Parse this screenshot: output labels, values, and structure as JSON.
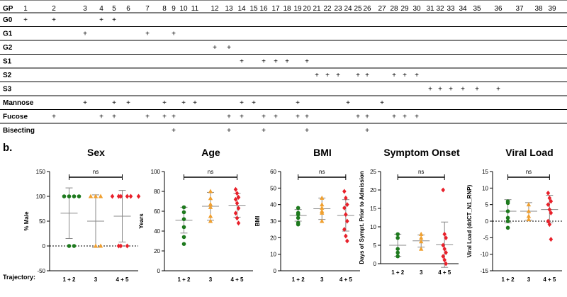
{
  "glycan_table": {
    "gp_header": "GP",
    "gp_numbers": [
      "1",
      "2",
      "3",
      "4",
      "5",
      "6",
      "7",
      "8",
      "9",
      "10",
      "11",
      "12",
      "13",
      "14",
      "15",
      "16",
      "17",
      "18",
      "19",
      "20",
      "21",
      "22",
      "23",
      "24",
      "25",
      "26",
      "27",
      "28",
      "29",
      "30",
      "31",
      "32",
      "33",
      "34",
      "35",
      "36",
      "37",
      "38",
      "39"
    ],
    "rows": [
      {
        "label": "G0",
        "marks": [
          1,
          2,
          4,
          5
        ]
      },
      {
        "label": "G1",
        "marks": [
          3,
          7,
          9
        ]
      },
      {
        "label": "G2",
        "marks": [
          12,
          13
        ]
      },
      {
        "label": "S1",
        "marks": [
          14,
          16,
          17,
          18,
          20
        ]
      },
      {
        "label": "S2",
        "marks": [
          21,
          22,
          23,
          25,
          26,
          28,
          29,
          30
        ]
      },
      {
        "label": "S3",
        "marks": [
          31,
          32,
          33,
          34,
          35,
          36
        ]
      },
      {
        "label": "Mannose",
        "marks": [
          3,
          5,
          6,
          8,
          10,
          11,
          14,
          15,
          19,
          24,
          27
        ]
      },
      {
        "label": "Fucose",
        "marks": [
          2,
          4,
          5,
          7,
          8,
          9,
          13,
          14,
          16,
          17,
          19,
          20,
          25,
          26,
          28,
          29,
          30
        ]
      },
      {
        "label": "Bisecting",
        "marks": [
          9,
          13,
          16,
          20,
          26
        ]
      }
    ],
    "mark_symbol": "+"
  },
  "panel_label": "b.",
  "trajectory_label": "Trajectory:",
  "colors": {
    "group1": "#1e7a1e",
    "group2": "#f0a030",
    "group3": "#e8202a",
    "error": "#888888"
  },
  "chart_data": [
    {
      "type": "scatter",
      "title": "Sex",
      "ylabel": "% Male",
      "categories": [
        "1 + 2",
        "3",
        "4 + 5"
      ],
      "ylim": [
        -50,
        150
      ],
      "yticks": [
        "-50",
        "0",
        "50",
        "100",
        "150"
      ],
      "yticknums": [
        -50,
        0,
        50,
        100,
        150
      ],
      "significance": "ns",
      "zero_line": 0,
      "series": [
        {
          "name": "1 + 2",
          "marker": "circle",
          "points": [
            100,
            100,
            100,
            100,
            0,
            0
          ],
          "mean": 66,
          "sd_low": 15,
          "sd_high": 117
        },
        {
          "name": "3",
          "marker": "triangle",
          "points": [
            100,
            100,
            100,
            0,
            0
          ],
          "mean": 50,
          "sd_low": -3,
          "sd_high": 103
        },
        {
          "name": "4 + 5",
          "marker": "diamond",
          "points": [
            100,
            100,
            100,
            100,
            100,
            100,
            0,
            0,
            0
          ],
          "mean": 60,
          "sd_low": 8,
          "sd_high": 112
        }
      ]
    },
    {
      "type": "scatter",
      "title": "Age",
      "ylabel": "Years",
      "categories": [
        "1 + 2",
        "3",
        "4 + 5"
      ],
      "ylim": [
        0,
        100
      ],
      "yticks": [
        "0",
        "20",
        "40",
        "60",
        "80",
        "100"
      ],
      "yticknums": [
        0,
        20,
        40,
        60,
        80,
        100
      ],
      "significance": "ns",
      "series": [
        {
          "name": "1 + 2",
          "marker": "circle",
          "points": [
            64,
            59,
            52,
            44,
            34,
            27
          ],
          "mean": 51,
          "sd_low": 38,
          "sd_high": 64
        },
        {
          "name": "3",
          "marker": "triangle",
          "points": [
            80,
            73,
            67,
            64,
            55,
            50
          ],
          "mean": 65,
          "sd_low": 51,
          "sd_high": 79
        },
        {
          "name": "4 + 5",
          "marker": "diamond",
          "points": [
            82,
            78,
            74,
            72,
            68,
            63,
            58,
            53,
            48
          ],
          "mean": 66,
          "sd_low": 54,
          "sd_high": 78
        }
      ]
    },
    {
      "type": "scatter",
      "title": "BMI",
      "ylabel": "BMI",
      "categories": [
        "1 + 2",
        "3",
        "4 + 5"
      ],
      "ylim": [
        0,
        60
      ],
      "yticks": [
        "0",
        "10",
        "20",
        "30",
        "40",
        "50",
        "60"
      ],
      "yticknums": [
        0,
        10,
        20,
        30,
        40,
        50,
        60
      ],
      "significance": "ns",
      "series": [
        {
          "name": "1 + 2",
          "marker": "circle",
          "points": [
            38,
            35,
            34,
            32,
            29,
            28
          ],
          "mean": 33.5,
          "sd_low": 30,
          "sd_high": 37
        },
        {
          "name": "3",
          "marker": "triangle",
          "points": [
            44,
            40,
            38,
            36,
            35,
            30
          ],
          "mean": 37.5,
          "sd_low": 31,
          "sd_high": 44
        },
        {
          "name": "4 + 5",
          "marker": "diamond",
          "points": [
            48,
            44,
            40,
            38,
            34,
            30,
            25,
            21,
            18
          ],
          "mean": 33.5,
          "sd_low": 24,
          "sd_high": 43
        }
      ]
    },
    {
      "type": "scatter",
      "title": "Symptom Onset",
      "ylabel": "Days of Sympt. Prior to Admission",
      "categories": [
        "1 + 2",
        "3",
        "4 + 5"
      ],
      "ylim": [
        0,
        25
      ],
      "yticks": [
        "0",
        "5",
        "10",
        "15",
        "20",
        "25"
      ],
      "yticknums": [
        0,
        5,
        10,
        15,
        20,
        25
      ],
      "significance": "ns",
      "series": [
        {
          "name": "1 + 2",
          "marker": "circle",
          "points": [
            8,
            7,
            4,
            3,
            2
          ],
          "mean": 5,
          "sd_low": 2,
          "sd_high": 8
        },
        {
          "name": "3",
          "marker": "triangle",
          "points": [
            8,
            7,
            6,
            4
          ],
          "mean": 6.2,
          "sd_low": 4.5,
          "sd_high": 7.8
        },
        {
          "name": "4 + 5",
          "marker": "diamond",
          "points": [
            20,
            8,
            7,
            5,
            4,
            3,
            2,
            1,
            0
          ],
          "mean": 5.2,
          "sd_low": -1,
          "sd_high": 11.3
        }
      ]
    },
    {
      "type": "scatter",
      "title": "Viral Load",
      "ylabel": "Viral Load (ddCT_N1_RNP)",
      "categories": [
        "1 + 2",
        "3",
        "4 + 5"
      ],
      "ylim": [
        -15,
        15
      ],
      "yticks": [
        "-15",
        "-10",
        "-5",
        "0",
        "5",
        "10",
        "15"
      ],
      "yticknums": [
        -15,
        -10,
        -5,
        0,
        5,
        10,
        15
      ],
      "significance": "ns",
      "zero_line": 0,
      "series": [
        {
          "name": "1 + 2",
          "marker": "circle",
          "points": [
            6,
            5.5,
            3,
            1,
            0,
            -2
          ],
          "mean": 3,
          "sd_low": -0.5,
          "sd_high": 6.5
        },
        {
          "name": "3",
          "marker": "triangle",
          "points": [
            5,
            3,
            1.5,
            0.5
          ],
          "mean": 3,
          "sd_low": 0.3,
          "sd_high": 5.6
        },
        {
          "name": "4 + 5",
          "marker": "diamond",
          "points": [
            8.5,
            7,
            6,
            5,
            3.5,
            2.5,
            0,
            -1,
            -5.5
          ],
          "mean": 3.5,
          "sd_low": -0.5,
          "sd_high": 7.8
        }
      ]
    }
  ],
  "footer_text": "Trajectory"
}
